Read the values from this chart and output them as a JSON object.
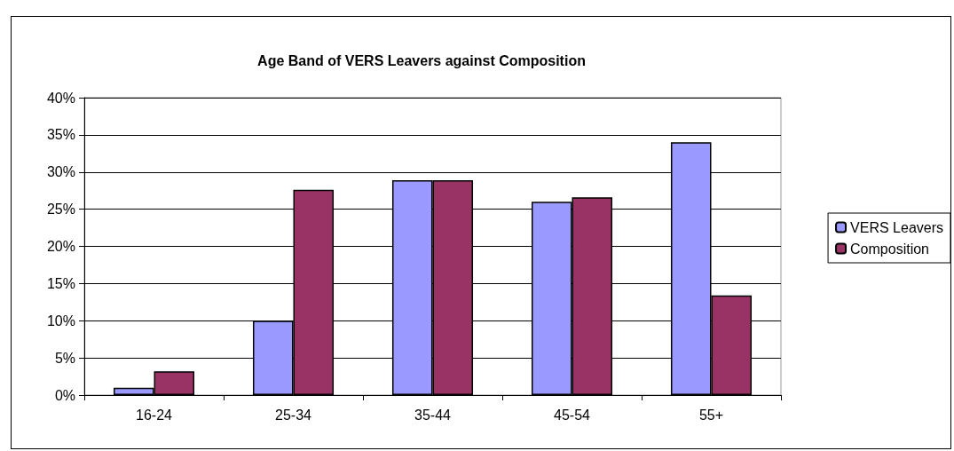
{
  "chart_data": {
    "type": "bar",
    "title": "Age Band of VERS Leavers against Composition",
    "categories": [
      "16-24",
      "25-34",
      "35-44",
      "45-54",
      "55+"
    ],
    "series": [
      {
        "name": "VERS Leavers",
        "color": "#9999ff",
        "values": [
          1.0,
          10.0,
          28.9,
          26.0,
          34.0
        ]
      },
      {
        "name": "Composition",
        "color": "#993366",
        "values": [
          3.2,
          27.6,
          28.9,
          26.6,
          13.4
        ]
      }
    ],
    "ylim": [
      0,
      40
    ],
    "yticks": [
      {
        "value": 0,
        "label": "0%"
      },
      {
        "value": 5,
        "label": "5%"
      },
      {
        "value": 10,
        "label": "10%"
      },
      {
        "value": 15,
        "label": "15%"
      },
      {
        "value": 20,
        "label": "20%"
      },
      {
        "value": 25,
        "label": "25%"
      },
      {
        "value": 30,
        "label": "30%"
      },
      {
        "value": 35,
        "label": "35%"
      },
      {
        "value": 40,
        "label": "40%"
      }
    ],
    "grid": "y",
    "legend": "right"
  }
}
